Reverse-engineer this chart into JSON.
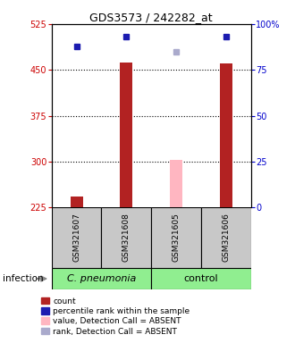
{
  "title": "GDS3573 / 242282_at",
  "samples": [
    "GSM321607",
    "GSM321608",
    "GSM321605",
    "GSM321606"
  ],
  "bar_color_present": "#B22222",
  "bar_color_absent": "#FFB6C1",
  "dot_color_present": "#1C1CB0",
  "dot_color_absent": "#AAAACC",
  "ylim_left": [
    225,
    525
  ],
  "ylim_right": [
    0,
    100
  ],
  "yticks_left": [
    225,
    300,
    375,
    450,
    525
  ],
  "yticks_right": [
    0,
    25,
    50,
    75,
    100
  ],
  "values": [
    243,
    462,
    303,
    461
  ],
  "ranks": [
    88,
    93,
    85,
    93
  ],
  "detection": [
    "P",
    "P",
    "A",
    "P"
  ],
  "bar_width": 0.25,
  "legend_items": [
    {
      "label": "count",
      "color": "#B22222"
    },
    {
      "label": "percentile rank within the sample",
      "color": "#1C1CB0"
    },
    {
      "label": "value, Detection Call = ABSENT",
      "color": "#FFB6C1"
    },
    {
      "label": "rank, Detection Call = ABSENT",
      "color": "#AAAACC"
    }
  ],
  "cpneumonia_label": "C. pneumonia",
  "control_label": "control",
  "infection_label": "infection",
  "sample_box_color": "#C8C8C8",
  "cpneumonia_box_color": "#90EE90",
  "control_box_color": "#90EE90",
  "grid_color": "black",
  "grid_linestyle": ":",
  "grid_linewidth": 0.8,
  "ytick_color_left": "#CC0000",
  "ytick_color_right": "#0000CC",
  "title_fontsize": 9,
  "tick_fontsize": 7,
  "sample_fontsize": 6.5,
  "legend_fontsize": 6.5,
  "group_fontsize": 8,
  "infection_fontsize": 7.5
}
